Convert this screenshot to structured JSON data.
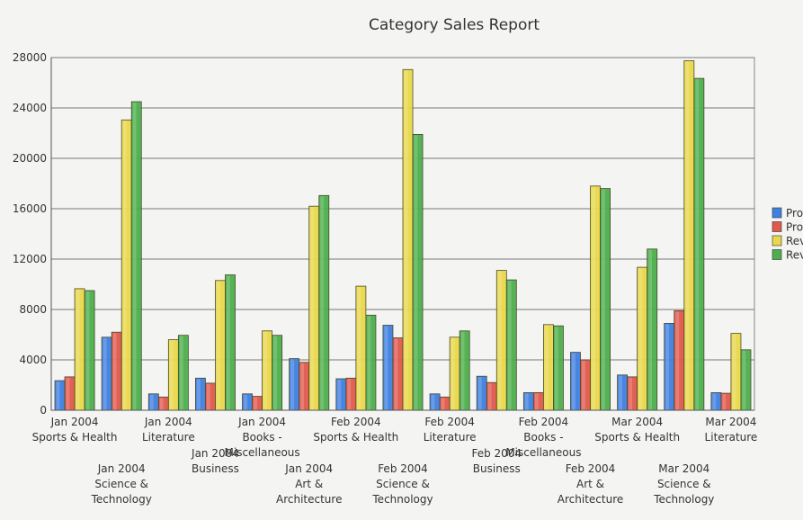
{
  "chart_data": {
    "type": "bar",
    "title": "Category Sales Report",
    "xlabel": "",
    "ylabel": "",
    "ylim": [
      0,
      28000
    ],
    "yticks": [
      0,
      4000,
      8000,
      12000,
      16000,
      20000,
      24000,
      28000
    ],
    "grid": true,
    "legend_position": "right",
    "categories": [
      [
        "Jan 2004",
        "Sports & Health"
      ],
      [
        "Jan 2004",
        "Science &",
        "Technology"
      ],
      [
        "Jan 2004",
        "Literature"
      ],
      [
        "Jan 2004",
        "Business"
      ],
      [
        "Jan 2004",
        "Books -",
        "Miscellaneous"
      ],
      [
        "Jan 2004",
        "Art &",
        "Architecture"
      ],
      [
        "Feb 2004",
        "Sports & Health"
      ],
      [
        "Feb 2004",
        "Science &",
        "Technology"
      ],
      [
        "Feb 2004",
        "Literature"
      ],
      [
        "Feb 2004",
        "Business"
      ],
      [
        "Feb 2004",
        "Books -",
        "Miscellaneous"
      ],
      [
        "Feb 2004",
        "Art &",
        "Architecture"
      ],
      [
        "Mar 2004",
        "Sports & Health"
      ],
      [
        "Mar 2004",
        "Science &",
        "Technology"
      ],
      [
        "Mar 2004",
        "Literature"
      ]
    ],
    "series": [
      {
        "name": "Pro",
        "color": "#3f7fe0",
        "values": [
          2350,
          5800,
          1300,
          2550,
          1300,
          4100,
          2500,
          6750,
          1300,
          2700,
          1400,
          4600,
          2800,
          6900,
          1400
        ]
      },
      {
        "name": "Pro",
        "color": "#e0594c",
        "values": [
          2650,
          6200,
          1050,
          2150,
          1100,
          3800,
          2550,
          5750,
          1050,
          2200,
          1400,
          4000,
          2650,
          7900,
          1350
        ]
      },
      {
        "name": "Rev",
        "color": "#e9d84a",
        "values": [
          9650,
          23050,
          5600,
          10300,
          6300,
          16200,
          9850,
          27050,
          5800,
          11100,
          6800,
          17800,
          11350,
          27750,
          6100
        ]
      },
      {
        "name": "Rev",
        "color": "#4cae4c",
        "values": [
          9500,
          24500,
          5950,
          10750,
          5950,
          17050,
          7550,
          21900,
          6300,
          10350,
          6700,
          17600,
          12800,
          26350,
          4800
        ]
      }
    ]
  }
}
